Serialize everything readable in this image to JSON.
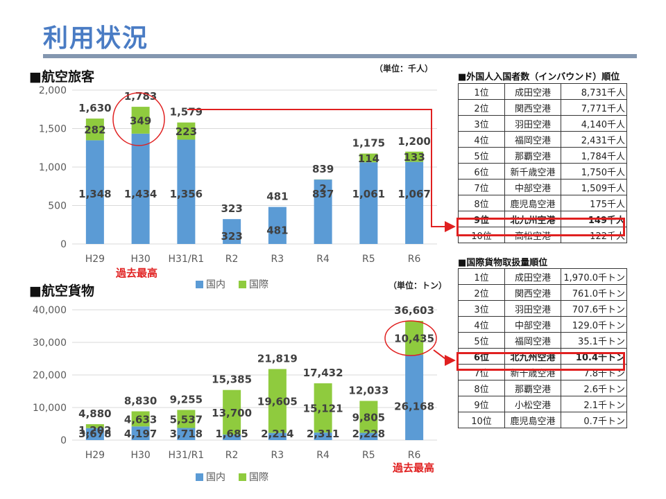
{
  "page": {
    "title": "利用状況"
  },
  "passenger": {
    "section_title": "■航空旅客",
    "unit": "（単位：千人）",
    "peak_label": "過去最高"
  },
  "cargo": {
    "section_title": "■航空貨物",
    "unit": "（単位：トン）",
    "peak_label": "過去最高"
  },
  "rank_passengers": {
    "title": "■外国人入国者数（インバウンド）順位",
    "rows": [
      {
        "rank": "1位",
        "airport": "成田空港",
        "value": "8,731千人"
      },
      {
        "rank": "2位",
        "airport": "関西空港",
        "value": "7,771千人"
      },
      {
        "rank": "3位",
        "airport": "羽田空港",
        "value": "4,140千人"
      },
      {
        "rank": "4位",
        "airport": "福岡空港",
        "value": "2,431千人"
      },
      {
        "rank": "5位",
        "airport": "那覇空港",
        "value": "1,784千人"
      },
      {
        "rank": "6位",
        "airport": "新千歳空港",
        "value": "1,750千人"
      },
      {
        "rank": "7位",
        "airport": "中部空港",
        "value": "1,509千人"
      },
      {
        "rank": "8位",
        "airport": "鹿児島空港",
        "value": "175千人"
      },
      {
        "rank": "9位",
        "airport": "北九州空港",
        "value": "149千人"
      },
      {
        "rank": "10位",
        "airport": "高松空港",
        "value": "122千人"
      }
    ],
    "highlight_index": 8
  },
  "rank_cargo": {
    "title": "■国際貨物取扱量順位",
    "rows": [
      {
        "rank": "1位",
        "airport": "成田空港",
        "value": "1,970.0千トン"
      },
      {
        "rank": "2位",
        "airport": "関西空港",
        "value": "761.0千トン"
      },
      {
        "rank": "3位",
        "airport": "羽田空港",
        "value": "707.6千トン"
      },
      {
        "rank": "4位",
        "airport": "中部空港",
        "value": "129.0千トン"
      },
      {
        "rank": "5位",
        "airport": "福岡空港",
        "value": "35.1千トン"
      },
      {
        "rank": "6位",
        "airport": "北九州空港",
        "value": "10.4千トン"
      },
      {
        "rank": "7位",
        "airport": "新千歳空港",
        "value": "7.8千トン"
      },
      {
        "rank": "8位",
        "airport": "那覇空港",
        "value": "2.6千トン"
      },
      {
        "rank": "9位",
        "airport": "小松空港",
        "value": "2.1千トン"
      },
      {
        "rank": "10位",
        "airport": "鹿児島空港",
        "value": "0.7千トン"
      }
    ],
    "highlight_index": 5
  },
  "colors": {
    "domestic": "#5b9bd5",
    "international": "#8fcb3e",
    "highlight": "#e02020",
    "title": "#4a7cc4"
  },
  "chart_data": [
    {
      "type": "bar",
      "stacked": true,
      "categories": [
        "H29",
        "H30",
        "H31/R1",
        "R2",
        "R3",
        "R4",
        "R5",
        "R6"
      ],
      "series": [
        {
          "name": "国内",
          "values": [
            1348,
            1434,
            1356,
            323,
            481,
            837,
            1061,
            1067
          ]
        },
        {
          "name": "国際",
          "values": [
            282,
            349,
            223,
            null,
            null,
            2,
            114,
            133
          ]
        }
      ],
      "totals": [
        1630,
        1783,
        1579,
        323,
        481,
        839,
        1175,
        1200
      ],
      "yticks": [
        "2,000",
        "1,500",
        "1,000",
        "500",
        "0"
      ],
      "ylim": [
        0,
        2000
      ],
      "grid": true,
      "legend": "bottom",
      "unit": "（単位：千人）"
    },
    {
      "type": "bar",
      "stacked": true,
      "categories": [
        "H29",
        "H30",
        "H31/R1",
        "R2",
        "R3",
        "R4",
        "R5",
        "R6"
      ],
      "series": [
        {
          "name": "国内",
          "values": [
            3678,
            4197,
            3718,
            1685,
            2214,
            2311,
            2228,
            26168
          ]
        },
        {
          "name": "国際",
          "values": [
            1202,
            4633,
            5537,
            13700,
            19605,
            15121,
            9805,
            10435
          ]
        }
      ],
      "totals": [
        4880,
        8830,
        9255,
        15385,
        21819,
        17432,
        12033,
        36603
      ],
      "yticks": [
        "40,000",
        "30,000",
        "20,000",
        "10,000",
        "0"
      ],
      "ylim": [
        0,
        40000
      ],
      "grid": true,
      "legend": "bottom",
      "unit": "（単位：トン）"
    }
  ]
}
